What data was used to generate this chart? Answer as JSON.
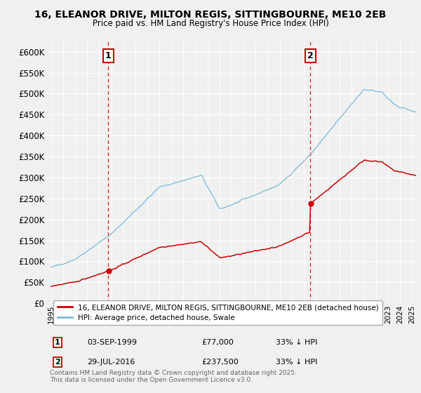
{
  "title": "16, ELEANOR DRIVE, MILTON REGIS, SITTINGBOURNE, ME10 2EB",
  "subtitle": "Price paid vs. HM Land Registry's House Price Index (HPI)",
  "ylabel_ticks": [
    "£0",
    "£50K",
    "£100K",
    "£150K",
    "£200K",
    "£250K",
    "£300K",
    "£350K",
    "£400K",
    "£450K",
    "£500K",
    "£550K",
    "£600K"
  ],
  "ytick_values": [
    0,
    50000,
    100000,
    150000,
    200000,
    250000,
    300000,
    350000,
    400000,
    450000,
    500000,
    550000,
    600000
  ],
  "purchase1": {
    "date": "03-SEP-1999",
    "price": 77000,
    "price_str": "£77,000",
    "label": "1",
    "year": 1999.75,
    "hpi_pct": "33% ↓ HPI"
  },
  "purchase2": {
    "date": "29-JUL-2016",
    "price": 237500,
    "price_str": "£237,500",
    "label": "2",
    "year": 2016.56,
    "hpi_pct": "33% ↓ HPI"
  },
  "hpi_color": "#7ab8d9",
  "price_color": "#cc0000",
  "vline_color": "#cc0000",
  "dot_color": "#cc0000",
  "legend_label_price": "16, ELEANOR DRIVE, MILTON REGIS, SITTINGBOURNE, ME10 2EB (detached house)",
  "legend_label_hpi": "HPI: Average price, detached house, Swale",
  "footnote": "Contains HM Land Registry data © Crown copyright and database right 2025.\nThis data is licensed under the Open Government Licence v3.0.",
  "xmin": 1994.6,
  "xmax": 2025.4,
  "ymin": 0,
  "ymax": 625000,
  "bg_color": "#f0f0f0",
  "plot_bg": "#f0f0f0",
  "grid_color": "#ffffff",
  "box_color": "#cc0000"
}
